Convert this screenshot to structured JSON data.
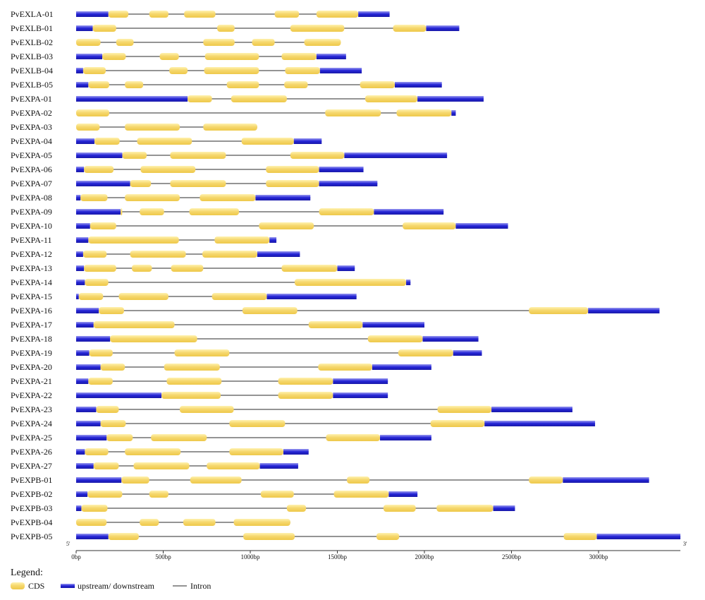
{
  "chart_data": {
    "type": "gene-structure",
    "scale_unit": "bp",
    "x_range": [
      0,
      3470
    ],
    "axis_ticks": [
      {
        "value": 0,
        "label": "0bp"
      },
      {
        "value": 500,
        "label": "500bp"
      },
      {
        "value": 1000,
        "label": "1000bp"
      },
      {
        "value": 1500,
        "label": "1500bp"
      },
      {
        "value": 2000,
        "label": "2000bp"
      },
      {
        "value": 2500,
        "label": "2500bp"
      },
      {
        "value": 3000,
        "label": "3000bp"
      }
    ],
    "end_labels": {
      "five_prime": "5'",
      "three_prime": "3'"
    },
    "colors": {
      "cds": "#f3d46a",
      "utr": "#2a2ad6",
      "intron": "#555555"
    },
    "genes": [
      {
        "name": "PvEXLA-01",
        "length": 1800,
        "utr": [
          [
            0,
            185
          ],
          [
            1620,
            1800
          ]
        ],
        "cds": [
          [
            185,
            300
          ],
          [
            420,
            530
          ],
          [
            620,
            800
          ],
          [
            1140,
            1280
          ],
          [
            1380,
            1620
          ]
        ]
      },
      {
        "name": "PvEXLB-01",
        "length": 2200,
        "utr": [
          [
            0,
            95
          ],
          [
            2010,
            2200
          ]
        ],
        "cds": [
          [
            95,
            230
          ],
          [
            810,
            910
          ],
          [
            1230,
            1540
          ],
          [
            1820,
            2010
          ]
        ]
      },
      {
        "name": "PvEXLB-02",
        "length": 1520,
        "utr": [],
        "cds": [
          [
            0,
            140
          ],
          [
            230,
            330
          ],
          [
            730,
            910
          ],
          [
            1010,
            1140
          ],
          [
            1310,
            1520
          ]
        ]
      },
      {
        "name": "PvEXLB-03",
        "length": 1550,
        "utr": [
          [
            0,
            150
          ],
          [
            1380,
            1550
          ]
        ],
        "cds": [
          [
            150,
            285
          ],
          [
            480,
            590
          ],
          [
            740,
            1050
          ],
          [
            1180,
            1380
          ]
        ]
      },
      {
        "name": "PvEXLB-04",
        "length": 1640,
        "utr": [
          [
            0,
            40
          ],
          [
            1400,
            1640
          ]
        ],
        "cds": [
          [
            40,
            170
          ],
          [
            535,
            640
          ],
          [
            735,
            1050
          ],
          [
            1200,
            1400
          ]
        ]
      },
      {
        "name": "PvEXLB-05",
        "length": 2100,
        "utr": [
          [
            0,
            70
          ],
          [
            1830,
            2100
          ]
        ],
        "cds": [
          [
            70,
            190
          ],
          [
            280,
            385
          ],
          [
            865,
            1050
          ],
          [
            1195,
            1330
          ],
          [
            1630,
            1830
          ]
        ]
      },
      {
        "name": "PvEXPA-01",
        "length": 2340,
        "utr": [
          [
            0,
            640
          ],
          [
            1960,
            2340
          ]
        ],
        "cds": [
          [
            640,
            780
          ],
          [
            890,
            1210
          ],
          [
            1660,
            1960
          ]
        ]
      },
      {
        "name": "PvEXPA-02",
        "length": 2180,
        "utr": [
          [
            2155,
            2180
          ]
        ],
        "cds": [
          [
            0,
            190
          ],
          [
            1430,
            1750
          ],
          [
            1840,
            2155
          ]
        ]
      },
      {
        "name": "PvEXPA-03",
        "length": 1040,
        "utr": [],
        "cds": [
          [
            0,
            135
          ],
          [
            280,
            595
          ],
          [
            730,
            1040
          ]
        ]
      },
      {
        "name": "PvEXPA-04",
        "length": 1410,
        "utr": [
          [
            0,
            105
          ],
          [
            1250,
            1410
          ]
        ],
        "cds": [
          [
            105,
            250
          ],
          [
            350,
            665
          ],
          [
            950,
            1250
          ]
        ]
      },
      {
        "name": "PvEXPA-05",
        "length": 2130,
        "utr": [
          [
            0,
            265
          ],
          [
            1540,
            2130
          ]
        ],
        "cds": [
          [
            265,
            405
          ],
          [
            540,
            860
          ],
          [
            1230,
            1540
          ]
        ]
      },
      {
        "name": "PvEXPA-06",
        "length": 1650,
        "utr": [
          [
            0,
            45
          ],
          [
            1395,
            1650
          ]
        ],
        "cds": [
          [
            45,
            215
          ],
          [
            370,
            685
          ],
          [
            1090,
            1395
          ]
        ]
      },
      {
        "name": "PvEXPA-07",
        "length": 1730,
        "utr": [
          [
            0,
            310
          ],
          [
            1395,
            1730
          ]
        ],
        "cds": [
          [
            310,
            430
          ],
          [
            540,
            860
          ],
          [
            1090,
            1395
          ]
        ]
      },
      {
        "name": "PvEXPA-08",
        "length": 1345,
        "utr": [
          [
            0,
            25
          ],
          [
            1030,
            1345
          ]
        ],
        "cds": [
          [
            25,
            180
          ],
          [
            280,
            595
          ],
          [
            710,
            1030
          ]
        ]
      },
      {
        "name": "PvEXPA-09",
        "length": 2110,
        "utr": [
          [
            0,
            255
          ],
          [
            1710,
            2110
          ]
        ],
        "cds": [
          [
            255,
            265
          ],
          [
            365,
            505
          ],
          [
            650,
            935
          ],
          [
            1395,
            1710
          ]
        ]
      },
      {
        "name": "PvEXPA-10",
        "length": 2480,
        "utr": [
          [
            0,
            80
          ],
          [
            2180,
            2480
          ]
        ],
        "cds": [
          [
            80,
            230
          ],
          [
            1050,
            1365
          ],
          [
            1875,
            2180
          ]
        ]
      },
      {
        "name": "PvEXPA-11",
        "length": 1150,
        "utr": [
          [
            0,
            70
          ],
          [
            1110,
            1150
          ]
        ],
        "cds": [
          [
            70,
            590
          ],
          [
            795,
            1110
          ]
        ]
      },
      {
        "name": "PvEXPA-12",
        "length": 1285,
        "utr": [
          [
            0,
            40
          ],
          [
            1040,
            1285
          ]
        ],
        "cds": [
          [
            40,
            175
          ],
          [
            310,
            630
          ],
          [
            725,
            1040
          ]
        ]
      },
      {
        "name": "PvEXPA-13",
        "length": 1600,
        "utr": [
          [
            0,
            45
          ],
          [
            1500,
            1600
          ]
        ],
        "cds": [
          [
            45,
            230
          ],
          [
            320,
            435
          ],
          [
            545,
            730
          ],
          [
            1180,
            1500
          ]
        ]
      },
      {
        "name": "PvEXPA-14",
        "length": 1920,
        "utr": [
          [
            0,
            50
          ],
          [
            1895,
            1920
          ]
        ],
        "cds": [
          [
            50,
            185
          ],
          [
            1255,
            1895
          ]
        ]
      },
      {
        "name": "PvEXPA-15",
        "length": 1610,
        "utr": [
          [
            0,
            15
          ],
          [
            1095,
            1610
          ]
        ],
        "cds": [
          [
            15,
            155
          ],
          [
            245,
            530
          ],
          [
            780,
            1095
          ]
        ]
      },
      {
        "name": "PvEXPA-16",
        "length": 3350,
        "utr": [
          [
            0,
            130
          ],
          [
            2940,
            3350
          ]
        ],
        "cds": [
          [
            130,
            275
          ],
          [
            955,
            1270
          ],
          [
            2600,
            2940
          ]
        ]
      },
      {
        "name": "PvEXPA-17",
        "length": 2000,
        "utr": [
          [
            0,
            100
          ],
          [
            1645,
            2000
          ]
        ],
        "cds": [
          [
            100,
            565
          ],
          [
            1335,
            1645
          ]
        ]
      },
      {
        "name": "PvEXPA-18",
        "length": 2310,
        "utr": [
          [
            0,
            195
          ],
          [
            1990,
            2310
          ]
        ],
        "cds": [
          [
            195,
            695
          ],
          [
            1675,
            1990
          ]
        ]
      },
      {
        "name": "PvEXPA-19",
        "length": 2330,
        "utr": [
          [
            0,
            75
          ],
          [
            2165,
            2330
          ]
        ],
        "cds": [
          [
            75,
            210
          ],
          [
            565,
            880
          ],
          [
            1850,
            2165
          ]
        ]
      },
      {
        "name": "PvEXPA-20",
        "length": 2040,
        "utr": [
          [
            0,
            140
          ],
          [
            1700,
            2040
          ]
        ],
        "cds": [
          [
            140,
            280
          ],
          [
            505,
            825
          ],
          [
            1390,
            1700
          ]
        ]
      },
      {
        "name": "PvEXPA-21",
        "length": 1790,
        "utr": [
          [
            0,
            70
          ],
          [
            1475,
            1790
          ]
        ],
        "cds": [
          [
            70,
            210
          ],
          [
            520,
            835
          ],
          [
            1160,
            1475
          ]
        ]
      },
      {
        "name": "PvEXPA-22",
        "length": 1790,
        "utr": [
          [
            0,
            490
          ],
          [
            1475,
            1790
          ]
        ],
        "cds": [
          [
            490,
            830
          ],
          [
            1160,
            1475
          ]
        ]
      },
      {
        "name": "PvEXPA-23",
        "length": 2850,
        "utr": [
          [
            0,
            115
          ],
          [
            2385,
            2850
          ]
        ],
        "cds": [
          [
            115,
            245
          ],
          [
            595,
            905
          ],
          [
            2075,
            2385
          ]
        ]
      },
      {
        "name": "PvEXPA-24",
        "length": 2980,
        "utr": [
          [
            0,
            140
          ],
          [
            2345,
            2980
          ]
        ],
        "cds": [
          [
            140,
            285
          ],
          [
            880,
            1200
          ],
          [
            2035,
            2345
          ]
        ]
      },
      {
        "name": "PvEXPA-25",
        "length": 2040,
        "utr": [
          [
            0,
            175
          ],
          [
            1745,
            2040
          ]
        ],
        "cds": [
          [
            175,
            325
          ],
          [
            430,
            750
          ],
          [
            1435,
            1745
          ]
        ]
      },
      {
        "name": "PvEXPA-26",
        "length": 1335,
        "utr": [
          [
            0,
            50
          ],
          [
            1190,
            1335
          ]
        ],
        "cds": [
          [
            50,
            185
          ],
          [
            280,
            600
          ],
          [
            880,
            1190
          ]
        ]
      },
      {
        "name": "PvEXPA-27",
        "length": 1275,
        "utr": [
          [
            0,
            100
          ],
          [
            1055,
            1275
          ]
        ],
        "cds": [
          [
            100,
            245
          ],
          [
            330,
            650
          ],
          [
            750,
            1055
          ]
        ]
      },
      {
        "name": "PvEXPB-01",
        "length": 3290,
        "utr": [
          [
            0,
            260
          ],
          [
            2795,
            3290
          ]
        ],
        "cds": [
          [
            260,
            420
          ],
          [
            655,
            950
          ],
          [
            1555,
            1685
          ],
          [
            2600,
            2795
          ]
        ]
      },
      {
        "name": "PvEXPB-02",
        "length": 1960,
        "utr": [
          [
            0,
            65
          ],
          [
            1795,
            1960
          ]
        ],
        "cds": [
          [
            65,
            265
          ],
          [
            420,
            530
          ],
          [
            1060,
            1250
          ],
          [
            1480,
            1795
          ]
        ]
      },
      {
        "name": "PvEXPB-03",
        "length": 2520,
        "utr": [
          [
            0,
            30
          ],
          [
            2395,
            2520
          ]
        ],
        "cds": [
          [
            30,
            180
          ],
          [
            1210,
            1320
          ],
          [
            1765,
            1950
          ],
          [
            2070,
            2395
          ]
        ]
      },
      {
        "name": "PvEXPB-04",
        "length": 1230,
        "utr": [],
        "cds": [
          [
            0,
            175
          ],
          [
            365,
            475
          ],
          [
            615,
            800
          ],
          [
            905,
            1230
          ]
        ]
      },
      {
        "name": "PvEXPB-05",
        "length": 3470,
        "utr": [
          [
            0,
            185
          ],
          [
            2990,
            3470
          ]
        ],
        "cds": [
          [
            185,
            360
          ],
          [
            960,
            1255
          ],
          [
            1725,
            1855
          ],
          [
            2800,
            2990
          ]
        ]
      }
    ]
  },
  "legend": {
    "title": "Legend:",
    "items": [
      {
        "key": "cds",
        "label": "CDS"
      },
      {
        "key": "utr",
        "label": "upstream/ downstream"
      },
      {
        "key": "intron",
        "label": "Intron"
      }
    ]
  }
}
